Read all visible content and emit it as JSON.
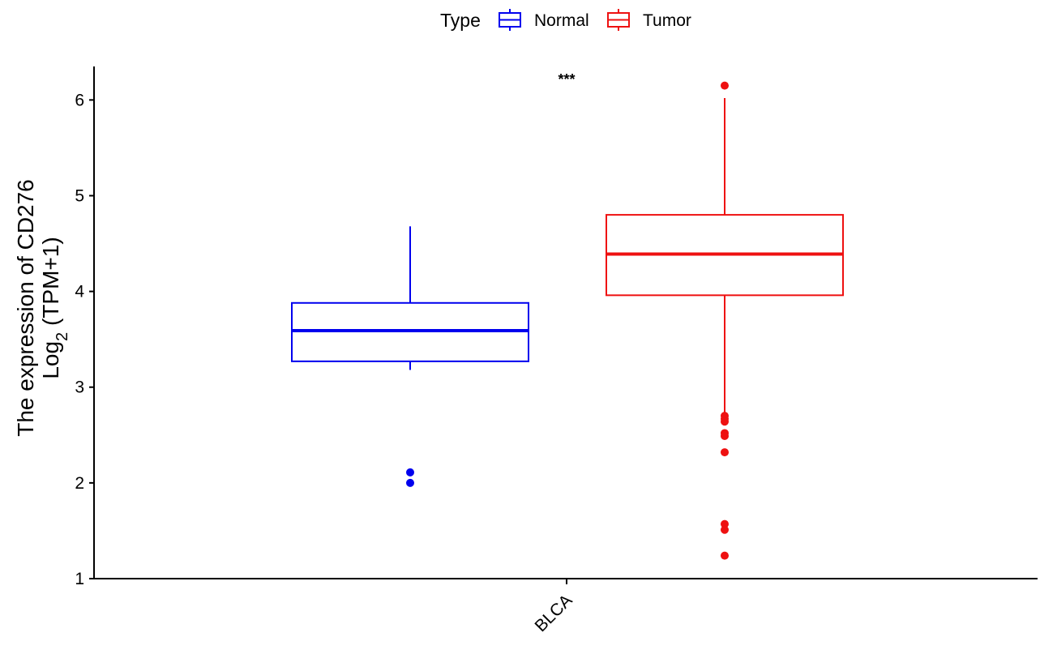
{
  "chart_data": {
    "type": "boxplot",
    "title": "",
    "xlabel": "",
    "ylabel_line1": "The expression of CD276",
    "ylabel_line2_main": "Log",
    "ylabel_line2_sub": "2",
    "ylabel_line2_rest": " (TPM+1)",
    "ylim": [
      1,
      6.35
    ],
    "yticks": [
      1,
      2,
      3,
      4,
      5,
      6
    ],
    "categories": [
      "BLCA"
    ],
    "legend": {
      "title": "Type",
      "position": "top"
    },
    "annotation": "***",
    "grid": false,
    "series": [
      {
        "name": "Normal",
        "color": "#0000ee",
        "boxes": [
          {
            "category": "BLCA",
            "whisker_low": 3.18,
            "q1": 3.27,
            "median": 3.59,
            "q3": 3.88,
            "whisker_high": 4.68,
            "outliers": [
              2.11,
              2.0
            ]
          }
        ]
      },
      {
        "name": "Tumor",
        "color": "#ee1111",
        "boxes": [
          {
            "category": "BLCA",
            "whisker_low": 2.74,
            "q1": 3.96,
            "median": 4.39,
            "q3": 4.8,
            "whisker_high": 6.02,
            "outliers": [
              6.15,
              2.7,
              2.67,
              2.64,
              2.52,
              2.49,
              2.32,
              1.57,
              1.51,
              1.24
            ]
          }
        ]
      }
    ]
  }
}
